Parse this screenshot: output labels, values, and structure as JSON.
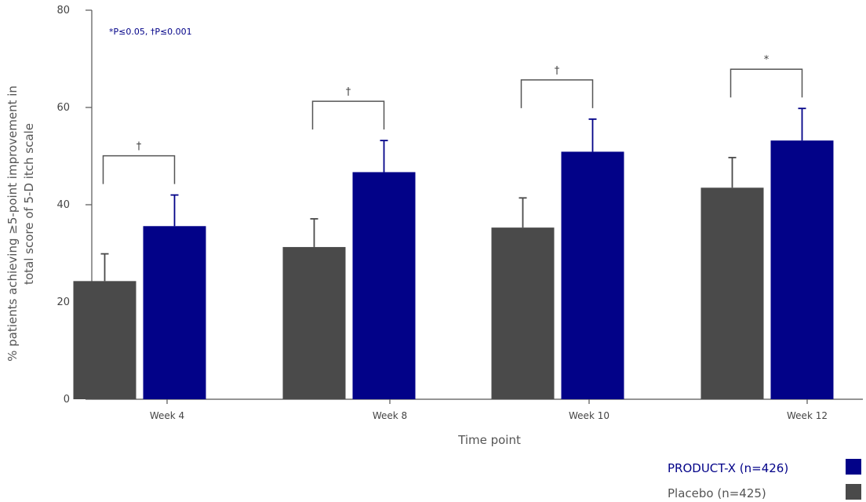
{
  "chart_data": {
    "type": "bar",
    "xlabel": "Time point",
    "ylabel_lines": [
      "% patients achieving ≥5-point improvement  in",
      "total score of 5-D itch scale"
    ],
    "ylim": [
      0,
      80
    ],
    "yticks": [
      0,
      20,
      40,
      60,
      80
    ],
    "categories": [
      "Week 4",
      "Week 8",
      "Week 10",
      "Week 12"
    ],
    "series": [
      {
        "name": "Placebo (n=425)",
        "color": "#4a4a4a",
        "values": [
          24.3,
          31.3,
          35.3,
          43.5
        ],
        "error_upper": [
          29.9,
          37.1,
          41.4,
          49.7
        ]
      },
      {
        "name": "PRODUCT-X (n=426)",
        "color": "#020288",
        "values": [
          35.6,
          46.7,
          50.9,
          53.2
        ],
        "error_upper": [
          42.0,
          53.2,
          57.6,
          59.8
        ]
      }
    ],
    "significance": [
      "†",
      "†",
      "†",
      "*"
    ],
    "significance_note": "*P≤0.05, †P≤0.001",
    "legend_order": [
      "PRODUCT-X (n=426)",
      "Placebo (n=425)"
    ],
    "legend_position": "bottom-right"
  }
}
